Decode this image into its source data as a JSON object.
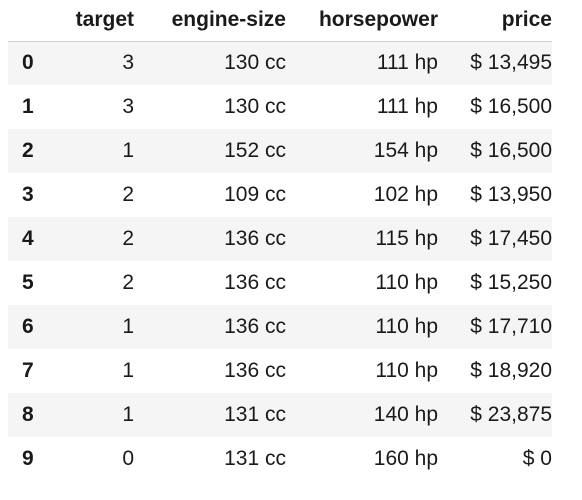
{
  "table": {
    "columns": [
      "",
      "target",
      "engine-size",
      "horsepower",
      "price"
    ],
    "rows": [
      {
        "index": "0",
        "target": "3",
        "engine_size": "130 cc",
        "horsepower": "111 hp",
        "price": "$ 13,495"
      },
      {
        "index": "1",
        "target": "3",
        "engine_size": "130 cc",
        "horsepower": "111 hp",
        "price": "$ 16,500"
      },
      {
        "index": "2",
        "target": "1",
        "engine_size": "152 cc",
        "horsepower": "154 hp",
        "price": "$ 16,500"
      },
      {
        "index": "3",
        "target": "2",
        "engine_size": "109 cc",
        "horsepower": "102 hp",
        "price": "$ 13,950"
      },
      {
        "index": "4",
        "target": "2",
        "engine_size": "136 cc",
        "horsepower": "115 hp",
        "price": "$ 17,450"
      },
      {
        "index": "5",
        "target": "2",
        "engine_size": "136 cc",
        "horsepower": "110 hp",
        "price": "$ 15,250"
      },
      {
        "index": "6",
        "target": "1",
        "engine_size": "136 cc",
        "horsepower": "110 hp",
        "price": "$ 17,710"
      },
      {
        "index": "7",
        "target": "1",
        "engine_size": "136 cc",
        "horsepower": "110 hp",
        "price": "$ 18,920"
      },
      {
        "index": "8",
        "target": "1",
        "engine_size": "131 cc",
        "horsepower": "140 hp",
        "price": "$ 23,875"
      },
      {
        "index": "9",
        "target": "0",
        "engine_size": "131 cc",
        "horsepower": "160 hp",
        "price": "$ 0"
      }
    ]
  }
}
